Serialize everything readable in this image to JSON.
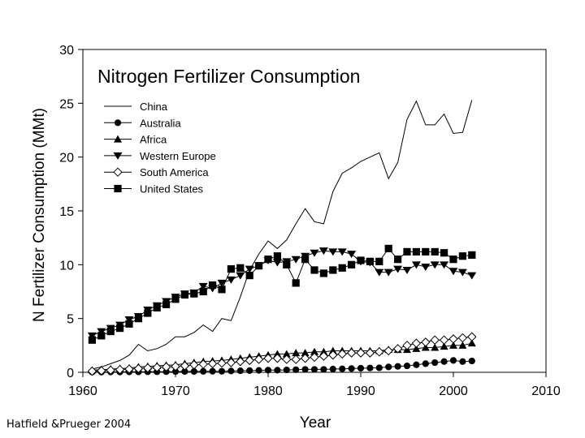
{
  "source_caption": "Hatfield &Prueger 2004",
  "chart_data": {
    "type": "line",
    "title": "Nitrogen Fertilizer Consumption",
    "xlabel": "Year",
    "ylabel": "N Fertilizer Consumption (MMt)",
    "xlim": [
      1960,
      2010
    ],
    "ylim": [
      0,
      30
    ],
    "x_ticks": [
      1960,
      1970,
      1980,
      1990,
      2000,
      2010
    ],
    "y_ticks": [
      0,
      5,
      10,
      15,
      20,
      25,
      30
    ],
    "grid": false,
    "legend_position": "top-left",
    "x": [
      1961,
      1962,
      1963,
      1964,
      1965,
      1966,
      1967,
      1968,
      1969,
      1970,
      1971,
      1972,
      1973,
      1974,
      1975,
      1976,
      1977,
      1978,
      1979,
      1980,
      1981,
      1982,
      1983,
      1984,
      1985,
      1986,
      1987,
      1988,
      1989,
      1990,
      1991,
      1992,
      1993,
      1994,
      1995,
      1996,
      1997,
      1998,
      1999,
      2000,
      2001,
      2002
    ],
    "series": [
      {
        "name": "China",
        "marker": "none",
        "values": [
          0.3,
          0.5,
          0.8,
          1.1,
          1.6,
          2.6,
          2.0,
          2.2,
          2.6,
          3.3,
          3.3,
          3.7,
          4.4,
          3.8,
          5.0,
          4.8,
          7.0,
          9.5,
          11.0,
          12.2,
          11.5,
          12.3,
          13.8,
          15.2,
          14.0,
          13.8,
          16.8,
          18.5,
          19.0,
          19.6,
          20.0,
          20.4,
          18.0,
          19.5,
          23.5,
          25.2,
          23.0,
          23.0,
          24.0,
          22.2,
          22.3,
          25.3
        ]
      },
      {
        "name": "Australia",
        "marker": "filled-circle",
        "values": [
          0.02,
          0.02,
          0.03,
          0.03,
          0.04,
          0.04,
          0.05,
          0.05,
          0.06,
          0.07,
          0.08,
          0.08,
          0.09,
          0.1,
          0.1,
          0.12,
          0.14,
          0.16,
          0.18,
          0.2,
          0.2,
          0.22,
          0.24,
          0.27,
          0.27,
          0.27,
          0.3,
          0.32,
          0.35,
          0.38,
          0.4,
          0.42,
          0.5,
          0.55,
          0.6,
          0.7,
          0.8,
          0.9,
          1.0,
          1.1,
          1.0,
          1.05
        ]
      },
      {
        "name": "Africa",
        "marker": "filled-triangle-up",
        "values": [
          0.2,
          0.25,
          0.3,
          0.35,
          0.4,
          0.5,
          0.55,
          0.6,
          0.65,
          0.7,
          0.8,
          0.9,
          1.0,
          1.05,
          1.1,
          1.2,
          1.3,
          1.4,
          1.5,
          1.6,
          1.7,
          1.7,
          1.8,
          1.8,
          1.9,
          1.9,
          2.0,
          2.0,
          2.0,
          2.0,
          2.0,
          2.0,
          2.1,
          2.1,
          2.1,
          2.2,
          2.3,
          2.3,
          2.4,
          2.5,
          2.5,
          2.7
        ]
      },
      {
        "name": "Western Europe",
        "marker": "filled-triangle-down",
        "values": [
          3.4,
          3.8,
          4.1,
          4.4,
          4.9,
          5.2,
          5.8,
          6.2,
          6.6,
          7.0,
          7.3,
          7.4,
          8.0,
          7.8,
          8.3,
          8.6,
          9.0,
          9.6,
          9.9,
          10.4,
          10.2,
          10.3,
          10.5,
          10.8,
          11.1,
          11.3,
          11.2,
          11.2,
          11.0,
          10.3,
          10.2,
          9.3,
          9.3,
          9.6,
          9.5,
          10.0,
          9.8,
          10.0,
          10.0,
          9.4,
          9.3,
          9.0
        ]
      },
      {
        "name": "South America",
        "marker": "open-diamond",
        "values": [
          0.1,
          0.15,
          0.2,
          0.25,
          0.3,
          0.35,
          0.4,
          0.45,
          0.5,
          0.55,
          0.6,
          0.7,
          0.75,
          0.8,
          0.85,
          0.9,
          1.0,
          1.1,
          1.2,
          1.3,
          1.3,
          1.2,
          1.2,
          1.3,
          1.4,
          1.5,
          1.6,
          1.7,
          1.8,
          1.8,
          1.8,
          1.9,
          2.0,
          2.2,
          2.5,
          2.7,
          2.8,
          3.0,
          3.0,
          3.1,
          3.2,
          3.3
        ]
      },
      {
        "name": "United States",
        "marker": "filled-square",
        "values": [
          3.0,
          3.4,
          3.8,
          4.1,
          4.5,
          5.0,
          5.5,
          6.0,
          6.3,
          6.8,
          7.2,
          7.3,
          7.5,
          8.1,
          7.7,
          9.6,
          9.7,
          9.0,
          9.9,
          10.5,
          10.8,
          10.0,
          8.3,
          10.5,
          9.5,
          9.2,
          9.5,
          9.7,
          10.0,
          10.4,
          10.3,
          10.3,
          11.5,
          10.5,
          11.2,
          11.2,
          11.2,
          11.2,
          11.1,
          10.5,
          10.8,
          10.9
        ]
      }
    ]
  }
}
